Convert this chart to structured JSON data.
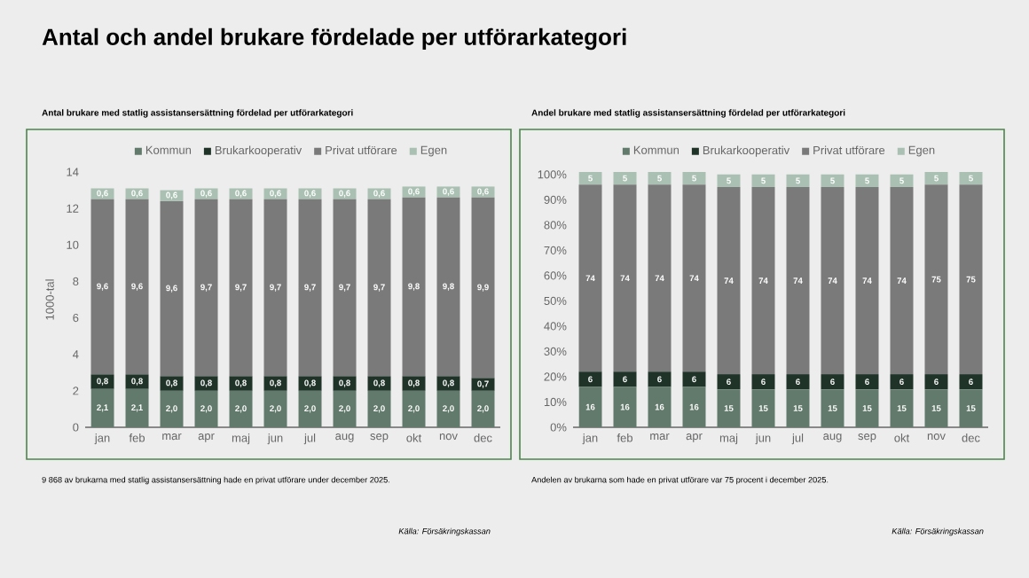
{
  "chart_data": [
    {
      "type": "bar",
      "stacked": true,
      "title": "Antal och andel brukare fördelade per utförarkategori",
      "subtitle": "Antal brukare med statlig assistansersättning fördelad per utförarkategori",
      "ylabel": "1000-tal",
      "legend": "top",
      "grid": false,
      "categories": [
        "jan",
        "feb",
        "mar",
        "apr",
        "maj",
        "jun",
        "jul",
        "aug",
        "sep",
        "okt",
        "nov",
        "dec"
      ],
      "ylim": [
        0,
        14
      ],
      "yticks": [
        0,
        2,
        4,
        6,
        8,
        10,
        12,
        14
      ],
      "series": [
        {
          "name": "Kommun",
          "color": "#627a6b",
          "values": [
            2.1,
            2.1,
            2.0,
            2.0,
            2.0,
            2.0,
            2.0,
            2.0,
            2.0,
            2.0,
            2.0,
            2.0
          ],
          "value_labels": [
            "2,1",
            "2,1",
            "2,0",
            "2,0",
            "2,0",
            "2,0",
            "2,0",
            "2,0",
            "2,0",
            "2,0",
            "2,0",
            "2,0"
          ]
        },
        {
          "name": "Brukarkooperativ",
          "color": "#1f3329",
          "values": [
            0.8,
            0.8,
            0.8,
            0.8,
            0.8,
            0.8,
            0.8,
            0.8,
            0.8,
            0.8,
            0.8,
            0.7
          ],
          "value_labels": [
            "0,8",
            "0,8",
            "0,8",
            "0,8",
            "0,8",
            "0,8",
            "0,8",
            "0,8",
            "0,8",
            "0,8",
            "0,8",
            "0,7"
          ]
        },
        {
          "name": "Privat utförare",
          "color": "#7a7a7a",
          "values": [
            9.6,
            9.6,
            9.6,
            9.7,
            9.7,
            9.7,
            9.7,
            9.7,
            9.7,
            9.8,
            9.8,
            9.9
          ],
          "value_labels": [
            "9,6",
            "9,6",
            "9,6",
            "9,7",
            "9,7",
            "9,7",
            "9,7",
            "9,7",
            "9,7",
            "9,8",
            "9,8",
            "9,9"
          ]
        },
        {
          "name": "Egen",
          "color": "#a9c0b2",
          "values": [
            0.6,
            0.6,
            0.6,
            0.6,
            0.6,
            0.6,
            0.6,
            0.6,
            0.6,
            0.6,
            0.6,
            0.6
          ],
          "value_labels": [
            "0,6",
            "0,6",
            "0,6",
            "0,6",
            "0,6",
            "0,6",
            "0,6",
            "0,6",
            "0,6",
            "0,6",
            "0,6",
            "0,6"
          ]
        }
      ],
      "annotations": [
        "9 868 av brukarna med statlig assistansersättning hade en privat utförare under december 2025.",
        "Källa: Försäkringskassan"
      ]
    },
    {
      "type": "bar",
      "stacked": true,
      "subtitle": "Andel brukare med statlig assistansersättning fördelad per utförarkategori",
      "legend": "top",
      "grid": false,
      "categories": [
        "jan",
        "feb",
        "mar",
        "apr",
        "maj",
        "jun",
        "jul",
        "aug",
        "sep",
        "okt",
        "nov",
        "dec"
      ],
      "ylim": [
        0,
        101
      ],
      "yticks": [
        {
          "value": 0,
          "label": "0%"
        },
        {
          "value": 10,
          "label": "10%"
        },
        {
          "value": 20,
          "label": "20%"
        },
        {
          "value": 30,
          "label": "30%"
        },
        {
          "value": 40,
          "label": "40%"
        },
        {
          "value": 50,
          "label": "50%"
        },
        {
          "value": 60,
          "label": "60%"
        },
        {
          "value": 70,
          "label": "70%"
        },
        {
          "value": 80,
          "label": "80%"
        },
        {
          "value": 90,
          "label": "90%"
        },
        {
          "value": 100,
          "label": "100%"
        }
      ],
      "series": [
        {
          "name": "Kommun",
          "color": "#627a6b",
          "values": [
            16,
            16,
            16,
            16,
            15,
            15,
            15,
            15,
            15,
            15,
            15,
            15
          ],
          "value_labels": [
            "16",
            "16",
            "16",
            "16",
            "15",
            "15",
            "15",
            "15",
            "15",
            "15",
            "15",
            "15"
          ]
        },
        {
          "name": "Brukarkooperativ",
          "color": "#1f3329",
          "values": [
            6,
            6,
            6,
            6,
            6,
            6,
            6,
            6,
            6,
            6,
            6,
            6
          ],
          "value_labels": [
            "6",
            "6",
            "6",
            "6",
            "6",
            "6",
            "6",
            "6",
            "6",
            "6",
            "6",
            "6"
          ]
        },
        {
          "name": "Privat utförare",
          "color": "#7a7a7a",
          "values": [
            74,
            74,
            74,
            74,
            74,
            74,
            74,
            74,
            74,
            74,
            75,
            75
          ],
          "value_labels": [
            "74",
            "74",
            "74",
            "74",
            "74",
            "74",
            "74",
            "74",
            "74",
            "74",
            "75",
            "75"
          ]
        },
        {
          "name": "Egen",
          "color": "#a9c0b2",
          "values": [
            5,
            5,
            5,
            5,
            5,
            5,
            5,
            5,
            5,
            5,
            5,
            5
          ],
          "value_labels": [
            "5",
            "5",
            "5",
            "5",
            "5",
            "5",
            "5",
            "5",
            "5",
            "5",
            "5",
            "5"
          ]
        }
      ],
      "annotations": [
        "Andelen av brukarna som hade en privat utförare var 75 procent i december 2025.",
        "Källa: Försäkringskassan"
      ]
    }
  ]
}
